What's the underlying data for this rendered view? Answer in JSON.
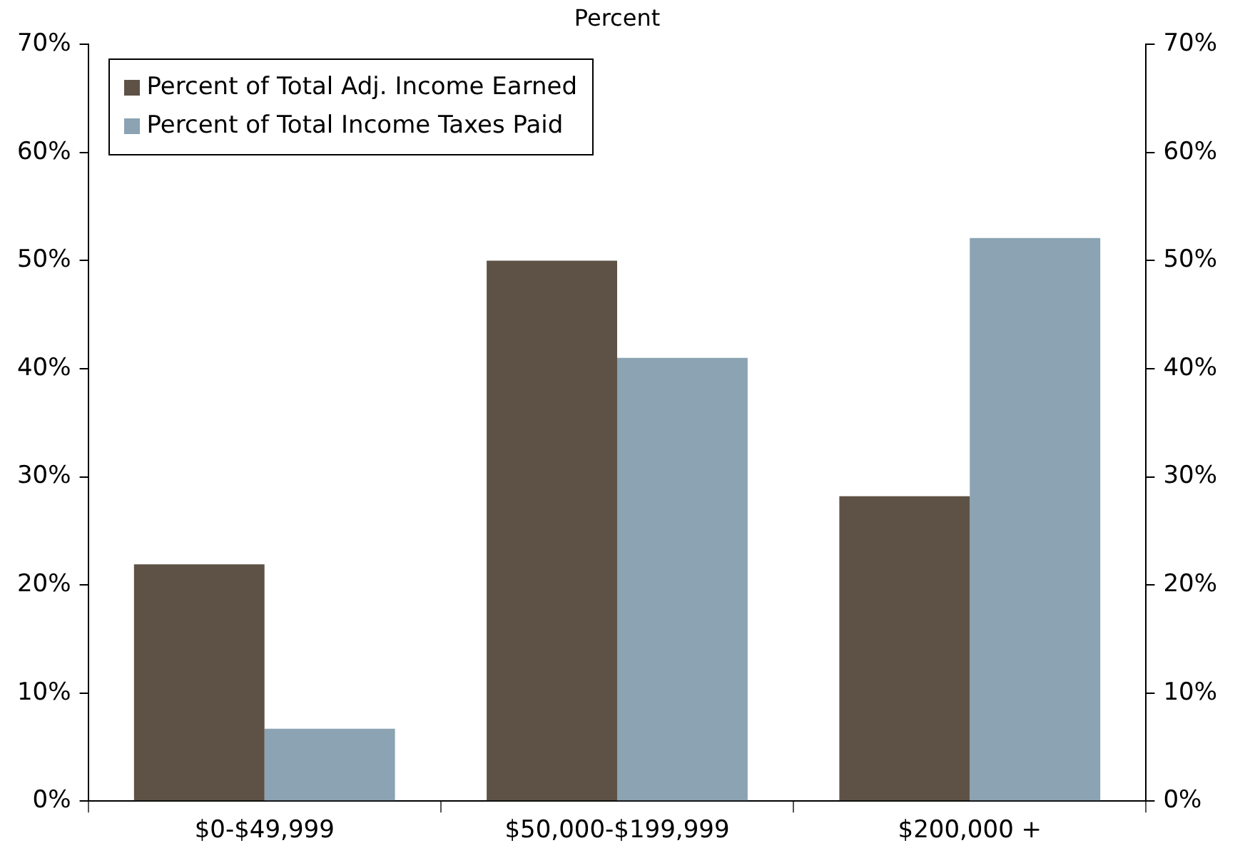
{
  "chart_data": {
    "type": "bar",
    "subtitle": "Percent",
    "categories": [
      "$0-$49,999",
      "$50,000-$199,999",
      "$200,000 +"
    ],
    "series": [
      {
        "name": "Percent of Total Adj. Income Earned",
        "color": "#5e5246",
        "values": [
          21.9,
          50.0,
          28.2
        ]
      },
      {
        "name": "Percent of Total Income Taxes Paid",
        "color": "#8ba3b2",
        "values": [
          6.7,
          41.0,
          52.1
        ]
      }
    ],
    "ylim": [
      0,
      70
    ],
    "yticks": [
      {
        "value": 0,
        "label": "0%"
      },
      {
        "value": 10,
        "label": "10%"
      },
      {
        "value": 20,
        "label": "20%"
      },
      {
        "value": 30,
        "label": "30%"
      },
      {
        "value": 40,
        "label": "40%"
      },
      {
        "value": 50,
        "label": "50%"
      },
      {
        "value": 60,
        "label": "60%"
      },
      {
        "value": 70,
        "label": "70%"
      }
    ],
    "y2lim": [
      0,
      70
    ],
    "y2ticks": [
      {
        "value": 0,
        "label": "0%"
      },
      {
        "value": 10,
        "label": "10%"
      },
      {
        "value": 20,
        "label": "20%"
      },
      {
        "value": 30,
        "label": "30%"
      },
      {
        "value": 40,
        "label": "40%"
      },
      {
        "value": 50,
        "label": "50%"
      },
      {
        "value": 60,
        "label": "60%"
      },
      {
        "value": 70,
        "label": "70%"
      }
    ],
    "grid": false,
    "legend": "top left"
  }
}
